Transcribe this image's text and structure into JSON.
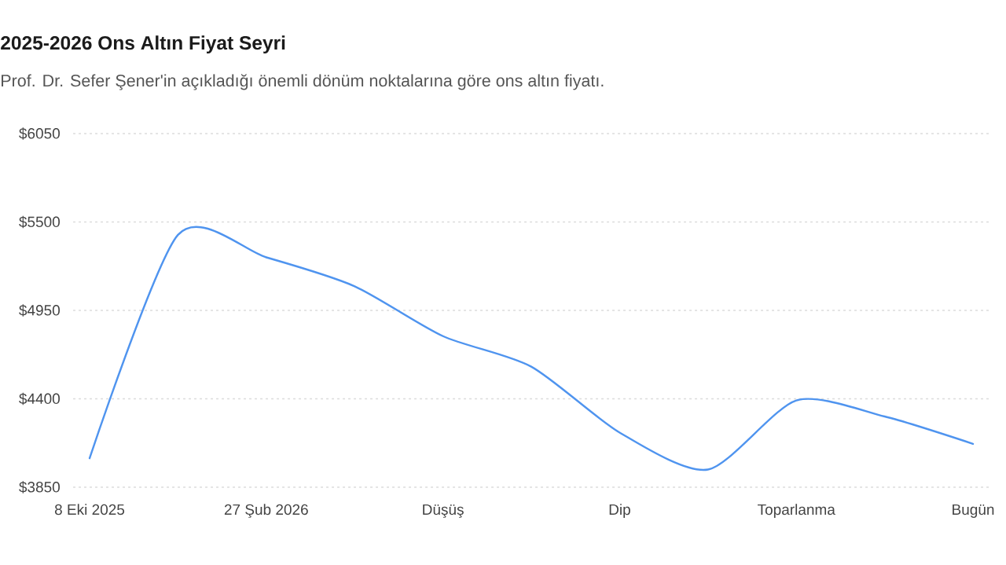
{
  "chart_data": {
    "type": "line",
    "title": "2025-2026 Ons Altın Fiyat Seyri",
    "subtitle": "Prof. Dr. Sefer Şener'in açıkladığı önemli dönüm noktalarına göre ons altın fiyatı.",
    "categories": [
      "8 Eki 2025",
      null,
      "27 Şub 2026",
      null,
      "Düşüş",
      null,
      "Dip",
      null,
      "Toparlanma",
      null,
      "Bugün"
    ],
    "values": [
      4030,
      5420,
      5280,
      5100,
      4790,
      4600,
      4190,
      3960,
      4390,
      4290,
      4120
    ],
    "color": "#4f94ef",
    "ylim": [
      3850,
      6050
    ],
    "yticks": [
      {
        "value": 3850,
        "label": "$3850"
      },
      {
        "value": 4400,
        "label": "$4400"
      },
      {
        "value": 4950,
        "label": "$4950"
      },
      {
        "value": 5500,
        "label": "$5500"
      },
      {
        "value": 6050,
        "label": "$6050"
      }
    ],
    "grid": "y",
    "marker": "none",
    "line_style": "solid"
  }
}
